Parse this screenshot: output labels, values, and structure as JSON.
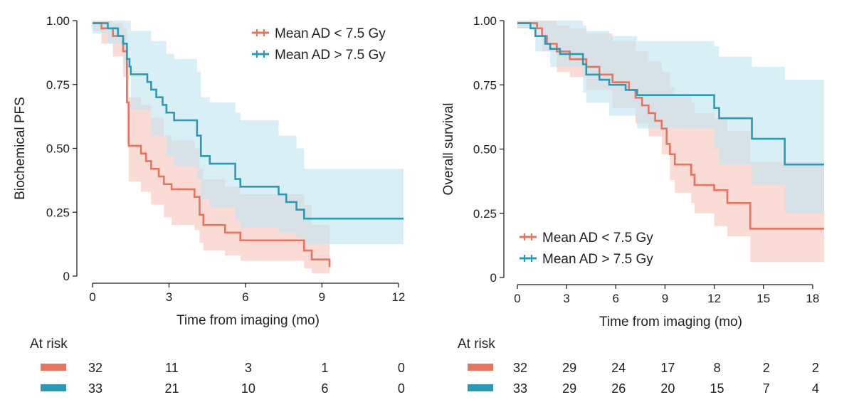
{
  "chart_data": [
    {
      "type": "line",
      "subtype": "kaplan-meier",
      "xlabel": "Time from imaging (mo)",
      "ylabel": "Biochemical PFS",
      "xlim": [
        0,
        12.2
      ],
      "ylim": [
        0,
        1
      ],
      "xticks": [
        0,
        3,
        6,
        9,
        12
      ],
      "yticks": [
        0,
        0.25,
        0.5,
        0.75,
        1.0
      ],
      "ytick_labels": [
        "0",
        "0.25",
        "0.50",
        "0.75",
        "1.00"
      ],
      "legend_position": "top-right",
      "series": [
        {
          "name": "Mean AD < 7.5 Gy",
          "color": "#e8735f",
          "ci_color": "#f6c3ba",
          "steps": [
            [
              0,
              0.99
            ],
            [
              0.35,
              0.97
            ],
            [
              0.8,
              0.94
            ],
            [
              1.2,
              0.88
            ],
            [
              1.35,
              0.68
            ],
            [
              1.42,
              0.51
            ],
            [
              1.9,
              0.48
            ],
            [
              2.1,
              0.45
            ],
            [
              2.3,
              0.42
            ],
            [
              2.6,
              0.39
            ],
            [
              2.8,
              0.36
            ],
            [
              3.1,
              0.34
            ],
            [
              4.0,
              0.31
            ],
            [
              4.2,
              0.24
            ],
            [
              4.35,
              0.2
            ],
            [
              5.2,
              0.17
            ],
            [
              5.8,
              0.14
            ],
            [
              8.3,
              0.1
            ],
            [
              8.6,
              0.065
            ],
            [
              9.3,
              0.035
            ]
          ],
          "end": 9.3,
          "ci_upper": [
            [
              0,
              1.0
            ],
            [
              0.35,
              1.0
            ],
            [
              0.8,
              0.99
            ],
            [
              1.2,
              0.97
            ],
            [
              1.35,
              0.84
            ],
            [
              1.42,
              0.7
            ],
            [
              1.9,
              0.67
            ],
            [
              2.3,
              0.62
            ],
            [
              2.8,
              0.55
            ],
            [
              3.1,
              0.53
            ],
            [
              4.0,
              0.5
            ],
            [
              4.2,
              0.42
            ],
            [
              4.35,
              0.38
            ],
            [
              5.2,
              0.35
            ],
            [
              5.8,
              0.32
            ],
            [
              8.3,
              0.28
            ],
            [
              8.6,
              0.2
            ],
            [
              9.3,
              0.12
            ]
          ],
          "ci_lower": [
            [
              0,
              0.96
            ],
            [
              0.35,
              0.91
            ],
            [
              0.8,
              0.86
            ],
            [
              1.2,
              0.78
            ],
            [
              1.35,
              0.52
            ],
            [
              1.42,
              0.37
            ],
            [
              1.9,
              0.33
            ],
            [
              2.3,
              0.28
            ],
            [
              2.8,
              0.23
            ],
            [
              3.1,
              0.2
            ],
            [
              4.0,
              0.18
            ],
            [
              4.2,
              0.13
            ],
            [
              4.35,
              0.1
            ],
            [
              5.2,
              0.08
            ],
            [
              5.8,
              0.06
            ],
            [
              8.3,
              0.03
            ],
            [
              8.6,
              0.01
            ],
            [
              9.3,
              0.0
            ]
          ]
        },
        {
          "name": "Mean AD > 7.5 Gy",
          "color": "#2b9bb5",
          "ci_color": "#bfe4f0",
          "steps": [
            [
              0,
              0.99
            ],
            [
              0.6,
              0.97
            ],
            [
              1.0,
              0.94
            ],
            [
              1.2,
              0.91
            ],
            [
              1.35,
              0.85
            ],
            [
              1.45,
              0.82
            ],
            [
              1.5,
              0.79
            ],
            [
              2.15,
              0.76
            ],
            [
              2.3,
              0.73
            ],
            [
              2.5,
              0.7
            ],
            [
              2.75,
              0.67
            ],
            [
              2.9,
              0.64
            ],
            [
              3.2,
              0.61
            ],
            [
              4.1,
              0.55
            ],
            [
              4.25,
              0.47
            ],
            [
              4.6,
              0.44
            ],
            [
              5.6,
              0.38
            ],
            [
              5.8,
              0.35
            ],
            [
              7.3,
              0.32
            ],
            [
              7.6,
              0.29
            ],
            [
              8.0,
              0.26
            ],
            [
              8.3,
              0.225
            ]
          ],
          "end": 12.2,
          "ci_upper": [
            [
              0,
              1.0
            ],
            [
              0.6,
              1.0
            ],
            [
              1.2,
              1.0
            ],
            [
              1.5,
              0.96
            ],
            [
              2.3,
              0.92
            ],
            [
              2.9,
              0.87
            ],
            [
              3.2,
              0.85
            ],
            [
              4.1,
              0.8
            ],
            [
              4.25,
              0.7
            ],
            [
              4.6,
              0.68
            ],
            [
              5.6,
              0.64
            ],
            [
              5.8,
              0.61
            ],
            [
              7.3,
              0.55
            ],
            [
              8.0,
              0.5
            ],
            [
              8.3,
              0.42
            ]
          ],
          "ci_lower": [
            [
              0,
              0.95
            ],
            [
              0.6,
              0.91
            ],
            [
              1.2,
              0.82
            ],
            [
              1.5,
              0.65
            ],
            [
              2.3,
              0.55
            ],
            [
              2.9,
              0.47
            ],
            [
              3.2,
              0.43
            ],
            [
              4.1,
              0.38
            ],
            [
              4.25,
              0.3
            ],
            [
              4.6,
              0.27
            ],
            [
              5.6,
              0.22
            ],
            [
              5.8,
              0.19
            ],
            [
              7.3,
              0.17
            ],
            [
              8.0,
              0.15
            ],
            [
              8.3,
              0.125
            ]
          ]
        }
      ],
      "at_risk": {
        "title": "At risk",
        "times": [
          0,
          3,
          6,
          9,
          12
        ],
        "rows": [
          {
            "color": "#e8735f",
            "counts": [
              "32",
              "11",
              "3",
              "1",
              "0"
            ]
          },
          {
            "color": "#2b9bb5",
            "counts": [
              "33",
              "21",
              "10",
              "6",
              "0"
            ]
          }
        ]
      }
    },
    {
      "type": "line",
      "subtype": "kaplan-meier",
      "xlabel": "Time from imaging (mo)",
      "ylabel": "Overall survival",
      "xlim": [
        0,
        18.7
      ],
      "ylim": [
        0,
        1
      ],
      "xticks": [
        0,
        3,
        6,
        9,
        12,
        15,
        18
      ],
      "yticks": [
        0,
        0.25,
        0.5,
        0.75,
        1.0
      ],
      "ytick_labels": [
        "0",
        "0.25",
        "0.50",
        "0.75",
        "1.00"
      ],
      "legend_position": "bottom-left",
      "series": [
        {
          "name": "Mean AD < 7.5 Gy",
          "color": "#e8735f",
          "ci_color": "#f6c3ba",
          "steps": [
            [
              0,
              0.99
            ],
            [
              1.2,
              0.97
            ],
            [
              1.5,
              0.94
            ],
            [
              1.8,
              0.91
            ],
            [
              2.4,
              0.88
            ],
            [
              3.2,
              0.85
            ],
            [
              4.2,
              0.82
            ],
            [
              5.0,
              0.79
            ],
            [
              5.8,
              0.76
            ],
            [
              6.8,
              0.73
            ],
            [
              7.2,
              0.7
            ],
            [
              7.6,
              0.67
            ],
            [
              8.0,
              0.64
            ],
            [
              8.4,
              0.61
            ],
            [
              8.8,
              0.58
            ],
            [
              9.1,
              0.52
            ],
            [
              9.3,
              0.48
            ],
            [
              9.6,
              0.44
            ],
            [
              10.6,
              0.4
            ],
            [
              10.8,
              0.36
            ],
            [
              12.0,
              0.34
            ],
            [
              12.8,
              0.29
            ],
            [
              14.2,
              0.19
            ]
          ],
          "end": 18.7,
          "ci_upper": [
            [
              0,
              1.0
            ],
            [
              1.5,
              1.0
            ],
            [
              2.4,
              0.98
            ],
            [
              3.2,
              0.97
            ],
            [
              4.2,
              0.95
            ],
            [
              5.8,
              0.92
            ],
            [
              7.2,
              0.88
            ],
            [
              8.0,
              0.84
            ],
            [
              8.8,
              0.8
            ],
            [
              9.3,
              0.74
            ],
            [
              9.6,
              0.71
            ],
            [
              10.6,
              0.68
            ],
            [
              10.8,
              0.64
            ],
            [
              12.0,
              0.62
            ],
            [
              12.8,
              0.57
            ],
            [
              14.2,
              0.45
            ]
          ],
          "ci_lower": [
            [
              0,
              0.97
            ],
            [
              1.5,
              0.88
            ],
            [
              2.4,
              0.8
            ],
            [
              3.2,
              0.78
            ],
            [
              4.2,
              0.73
            ],
            [
              5.8,
              0.66
            ],
            [
              7.2,
              0.6
            ],
            [
              8.0,
              0.55
            ],
            [
              8.8,
              0.48
            ],
            [
              9.3,
              0.38
            ],
            [
              9.6,
              0.33
            ],
            [
              10.6,
              0.29
            ],
            [
              10.8,
              0.25
            ],
            [
              12.0,
              0.2
            ],
            [
              12.8,
              0.16
            ],
            [
              14.2,
              0.06
            ]
          ]
        },
        {
          "name": "Mean AD > 7.5 Gy",
          "color": "#2b9bb5",
          "ci_color": "#bfe4f0",
          "steps": [
            [
              0,
              0.99
            ],
            [
              0.8,
              0.97
            ],
            [
              1.1,
              0.94
            ],
            [
              1.7,
              0.91
            ],
            [
              2.0,
              0.89
            ],
            [
              2.6,
              0.87
            ],
            [
              4.0,
              0.83
            ],
            [
              4.2,
              0.79
            ],
            [
              5.0,
              0.77
            ],
            [
              5.6,
              0.75
            ],
            [
              6.6,
              0.73
            ],
            [
              7.3,
              0.71
            ],
            [
              12.0,
              0.66
            ],
            [
              12.3,
              0.62
            ],
            [
              14.3,
              0.54
            ],
            [
              16.3,
              0.44
            ]
          ],
          "end": 18.7,
          "ci_upper": [
            [
              0,
              1.0
            ],
            [
              1.1,
              1.0
            ],
            [
              2.0,
              1.0
            ],
            [
              4.0,
              0.98
            ],
            [
              4.2,
              0.96
            ],
            [
              5.6,
              0.94
            ],
            [
              7.3,
              0.92
            ],
            [
              12.0,
              0.9
            ],
            [
              12.3,
              0.86
            ],
            [
              14.3,
              0.82
            ],
            [
              16.3,
              0.77
            ]
          ],
          "ci_lower": [
            [
              0,
              0.97
            ],
            [
              1.1,
              0.88
            ],
            [
              2.0,
              0.82
            ],
            [
              4.0,
              0.72
            ],
            [
              4.2,
              0.68
            ],
            [
              5.6,
              0.63
            ],
            [
              7.3,
              0.58
            ],
            [
              12.0,
              0.5
            ],
            [
              12.3,
              0.44
            ],
            [
              14.3,
              0.36
            ],
            [
              16.3,
              0.25
            ]
          ]
        }
      ],
      "at_risk": {
        "title": "At risk",
        "times": [
          0,
          3,
          6,
          9,
          12,
          15,
          18
        ],
        "rows": [
          {
            "color": "#e8735f",
            "counts": [
              "32",
              "29",
              "24",
              "17",
              "8",
              "2",
              "2"
            ]
          },
          {
            "color": "#2b9bb5",
            "counts": [
              "33",
              "29",
              "26",
              "20",
              "15",
              "7",
              "4"
            ]
          }
        ]
      }
    }
  ]
}
